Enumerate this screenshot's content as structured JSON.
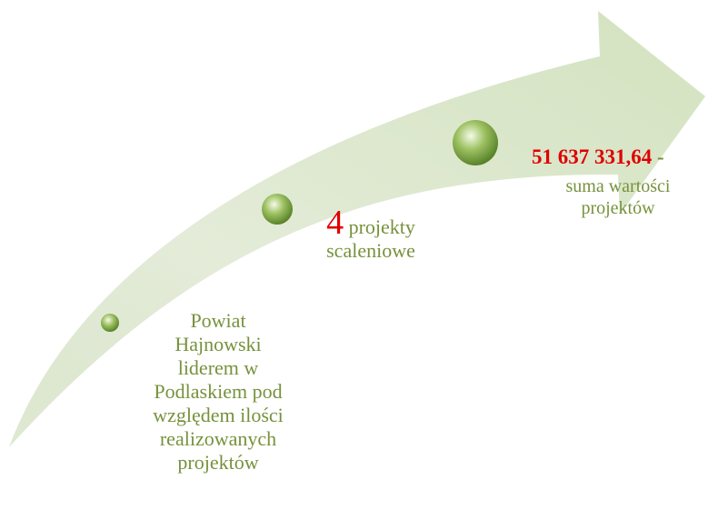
{
  "nodes": [
    {
      "label": "Powiat Hajnowski liderem w Podlaskiem pod względem ilości realizowanych projektów"
    },
    {
      "highlight": "4",
      "label": "projekty scaleniowe"
    },
    {
      "highlight": "51 637 331,64",
      "separator": "-",
      "label": "suma wartości projektów"
    }
  ]
}
